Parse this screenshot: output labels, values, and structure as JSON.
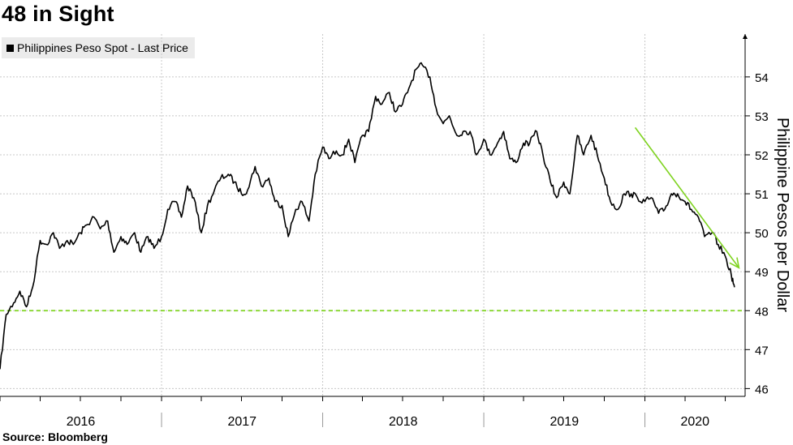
{
  "title": "48 in Sight",
  "source": "Source: Bloomberg",
  "colors": {
    "line": "#000000",
    "reference": "#7fd320",
    "arrow": "#7fd320",
    "grid": "#c8c8c8",
    "legend_bg": "#ebebeb"
  },
  "chart_data": {
    "type": "line",
    "title": "48 in Sight",
    "ylabel": "Philippine Pesos per Dollar",
    "ylim": [
      45.8,
      55.1
    ],
    "yticks": [
      46,
      47,
      48,
      49,
      50,
      51,
      52,
      53,
      54
    ],
    "yaxis_position": "right",
    "xlim": [
      "2016-01-01",
      "2020-08-15"
    ],
    "x_year_labels": [
      "2016",
      "2017",
      "2018",
      "2019",
      "2020"
    ],
    "grid": true,
    "legend": "top-left",
    "series": [
      {
        "name": "Philippines Peso Spot - Last Price",
        "x": [
          "2016-01-01",
          "2016-01-15",
          "2016-02-01",
          "2016-02-15",
          "2016-03-01",
          "2016-03-15",
          "2016-04-01",
          "2016-04-15",
          "2016-05-01",
          "2016-05-15",
          "2016-06-01",
          "2016-06-15",
          "2016-07-01",
          "2016-07-15",
          "2016-08-01",
          "2016-08-15",
          "2016-09-01",
          "2016-09-15",
          "2016-10-01",
          "2016-10-15",
          "2016-11-01",
          "2016-11-15",
          "2016-12-01",
          "2016-12-15",
          "2017-01-01",
          "2017-01-15",
          "2017-02-01",
          "2017-02-15",
          "2017-03-01",
          "2017-03-15",
          "2017-04-01",
          "2017-04-15",
          "2017-05-01",
          "2017-05-15",
          "2017-06-01",
          "2017-06-15",
          "2017-07-01",
          "2017-07-15",
          "2017-08-01",
          "2017-08-15",
          "2017-09-01",
          "2017-09-15",
          "2017-10-01",
          "2017-10-15",
          "2017-11-01",
          "2017-11-15",
          "2017-12-01",
          "2017-12-15",
          "2018-01-01",
          "2018-01-15",
          "2018-02-01",
          "2018-02-15",
          "2018-03-01",
          "2018-03-15",
          "2018-04-01",
          "2018-04-15",
          "2018-05-01",
          "2018-05-15",
          "2018-06-01",
          "2018-06-15",
          "2018-07-01",
          "2018-07-15",
          "2018-08-01",
          "2018-08-15",
          "2018-09-01",
          "2018-09-15",
          "2018-10-01",
          "2018-10-15",
          "2018-11-01",
          "2018-11-15",
          "2018-12-01",
          "2018-12-15",
          "2019-01-01",
          "2019-01-15",
          "2019-02-01",
          "2019-02-15",
          "2019-03-01",
          "2019-03-15",
          "2019-04-01",
          "2019-04-15",
          "2019-05-01",
          "2019-05-15",
          "2019-06-01",
          "2019-06-15",
          "2019-07-01",
          "2019-07-15",
          "2019-08-01",
          "2019-08-15",
          "2019-09-01",
          "2019-09-15",
          "2019-10-01",
          "2019-10-15",
          "2019-11-01",
          "2019-11-15",
          "2019-12-01",
          "2019-12-15",
          "2020-01-01",
          "2020-01-15",
          "2020-02-01",
          "2020-02-15",
          "2020-03-01",
          "2020-03-15",
          "2020-04-01",
          "2020-04-15",
          "2020-05-01",
          "2020-05-15",
          "2020-06-01",
          "2020-06-15",
          "2020-07-01",
          "2020-07-15",
          "2020-07-22"
        ],
        "values": [
          46.5,
          47.9,
          48.2,
          48.5,
          48.1,
          48.6,
          49.8,
          49.7,
          50.0,
          49.6,
          49.8,
          49.7,
          50.0,
          50.2,
          50.4,
          50.1,
          50.3,
          49.5,
          49.9,
          49.7,
          50.0,
          49.5,
          49.9,
          49.6,
          49.9,
          50.6,
          50.8,
          50.4,
          51.2,
          50.9,
          50.0,
          50.7,
          51.1,
          51.4,
          51.5,
          51.3,
          51.0,
          51.1,
          51.7,
          51.2,
          51.4,
          50.8,
          50.7,
          49.9,
          50.6,
          50.8,
          50.3,
          51.5,
          52.2,
          51.9,
          52.1,
          52.0,
          52.4,
          51.8,
          52.5,
          52.6,
          53.5,
          53.3,
          53.6,
          53.1,
          53.3,
          53.7,
          54.2,
          54.3,
          54.0,
          53.2,
          52.8,
          53.0,
          52.5,
          52.6,
          52.6,
          52.0,
          52.4,
          52.0,
          52.3,
          52.6,
          51.9,
          51.8,
          52.3,
          52.3,
          52.6,
          52.0,
          51.3,
          50.9,
          51.3,
          51.0,
          52.5,
          52.0,
          52.5,
          52.0,
          51.4,
          50.8,
          50.6,
          51.0,
          51.0,
          50.9,
          50.8,
          50.9,
          50.5,
          50.6,
          51.0,
          51.0,
          50.8,
          50.6,
          50.4,
          49.9,
          50.0,
          49.7,
          49.4,
          48.9,
          48.6
        ]
      }
    ],
    "reference_line": {
      "y": 48
    },
    "arrow": {
      "from": {
        "x": "2019-12-10",
        "y": 52.7
      },
      "to": {
        "x": "2020-08-01",
        "y": 49.1
      }
    }
  }
}
